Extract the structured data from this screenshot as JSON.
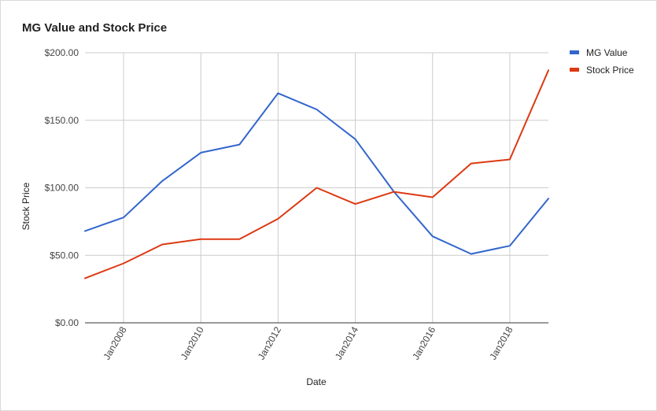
{
  "chart_data": {
    "type": "line",
    "title": "MG Value and Stock Price",
    "xlabel": "Date",
    "ylabel": "Stock Price",
    "ylim": [
      0,
      200
    ],
    "yticks": [
      "$0.00",
      "$50.00",
      "$100.00",
      "$150.00",
      "$200.00"
    ],
    "ytick_values": [
      0,
      50,
      100,
      150,
      200
    ],
    "xticks": [
      "Jan2008",
      "Jan2010",
      "Jan2012",
      "Jan2014",
      "Jan2016",
      "Jan2018"
    ],
    "xtick_years": [
      2008,
      2010,
      2012,
      2014,
      2016,
      2018
    ],
    "x": [
      2007,
      2008,
      2009,
      2010,
      2011,
      2012,
      2013,
      2014,
      2015,
      2016,
      2017,
      2018,
      2019
    ],
    "xlim": [
      2007,
      2019
    ],
    "series": [
      {
        "name": "MG Value",
        "color": "#3366cc",
        "values": [
          68,
          78,
          105,
          126,
          132,
          170,
          158,
          136,
          97,
          64,
          51,
          57,
          92
        ]
      },
      {
        "name": "Stock Price",
        "color": "#dc3912",
        "values": [
          33,
          44,
          58,
          62,
          62,
          77,
          100,
          88,
          97,
          93,
          118,
          121,
          187
        ]
      }
    ],
    "grid": true,
    "legend_position": "right"
  }
}
